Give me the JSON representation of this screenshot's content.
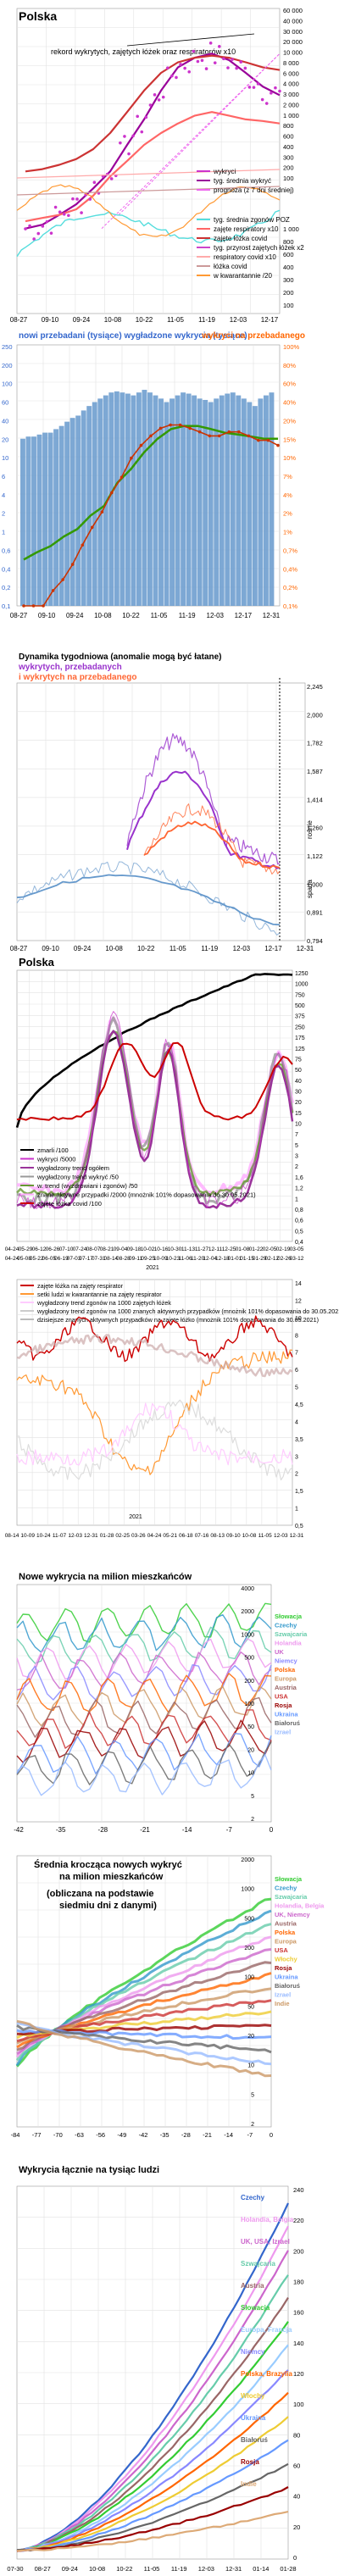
{
  "page": {
    "background": "#ffffff"
  },
  "chart_data": [
    {
      "type": "line",
      "title": "Polska",
      "annotation": "rekord wykrytych, zajętych łóżek oraz respiratorów x10",
      "x_ticks": [
        "08-27",
        "09-10",
        "09-24",
        "10-08",
        "10-22",
        "11-05",
        "11-19",
        "12-03",
        "12-17"
      ],
      "y_right_ticks": [
        "60 000",
        "40 000",
        "30 000",
        "20 000",
        "10 000",
        "8 000",
        "6 000",
        "4 000",
        "3 000",
        "2 000",
        "1 000",
        "800",
        "600",
        "400",
        "300",
        "200",
        "100"
      ],
      "y_lower_ticks": [
        "1 000",
        "800",
        "600",
        "400",
        "300",
        "200",
        "100"
      ],
      "yscale": "log",
      "legend_main": [
        {
          "name": "wykryci",
          "color": "#cc33cc"
        },
        {
          "name": "tyg. średnia wykryć",
          "color": "#990099"
        },
        {
          "name": "prognoza (z 7 dni średniej)",
          "color": "#ee66ee"
        }
      ],
      "legend_lower": [
        {
          "name": "tyg. średnia zgonów POZ",
          "color": "#55dddd"
        },
        {
          "name": "zajęte respiratory x10",
          "color": "#ff6666"
        },
        {
          "name": "zajęte łóżka covid",
          "color": "#cc3333"
        },
        {
          "name": "tyg. przyrost zajętych łóżek x2",
          "color": "#cc44cc"
        },
        {
          "name": "respiratory covid x10",
          "color": "#ffaaaa"
        },
        {
          "name": "łóżka covid",
          "color": "#cc9999"
        },
        {
          "name": "w kwarantannie /20",
          "color": "#ff9933"
        }
      ],
      "series": [
        {
          "name": "tyg. średnia wykryć",
          "values": [
            600,
            650,
            800,
            1000,
            1400,
            2000,
            3500,
            6000,
            11000,
            18000,
            22000,
            24000,
            21000,
            16000,
            12000,
            10000
          ]
        },
        {
          "name": "zajęte łóżka covid",
          "values": [
            2000,
            2100,
            2300,
            2600,
            3200,
            4500,
            7000,
            11000,
            16000,
            20000,
            22000,
            23000,
            22000,
            20000,
            18000,
            17000
          ]
        },
        {
          "name": "zajęte respiratory x10",
          "values": [
            700,
            750,
            800,
            900,
            1200,
            1800,
            2500,
            3500,
            4500,
            5500,
            6500,
            7000,
            6500,
            6000,
            5800,
            5500
          ]
        }
      ]
    },
    {
      "type": "bar",
      "title_left": "nowi przebadani (tysiące) wygładzone wykrycia (tysiące)",
      "title_right": "wykryci na przebadanego",
      "x_ticks": [
        "08-27",
        "09-10",
        "09-24",
        "10-08",
        "10-22",
        "11-05",
        "11-19",
        "12-03",
        "12-17",
        "12-31"
      ],
      "y_left_ticks": [
        "250",
        "200",
        "100",
        "60",
        "40",
        "20",
        "10",
        "6",
        "4",
        "2",
        "1",
        "0,6",
        "0,4",
        "0,2",
        "0,1"
      ],
      "y_right_ticks": [
        "100%",
        "80%",
        "60%",
        "40%",
        "20%",
        "15%",
        "10%",
        "7%",
        "4%",
        "2%",
        "1%",
        "0,7%",
        "0,4%",
        "0,2%",
        "0,1%"
      ],
      "bar_color": "#6699cc",
      "line_colors": [
        "#cc3300",
        "#339900"
      ],
      "values": [
        15,
        16,
        16,
        17,
        18,
        18,
        20,
        22,
        25,
        28,
        30,
        35,
        40,
        45,
        50,
        55,
        60,
        62,
        60,
        58,
        55,
        60,
        65,
        60,
        55,
        50,
        45,
        50,
        55,
        60,
        58,
        55,
        50,
        48,
        45,
        50,
        55,
        58,
        60,
        55,
        50,
        45,
        40,
        50,
        55,
        60
      ],
      "ratio_values": [
        0.1,
        0.1,
        0.1,
        0.15,
        0.2,
        0.3,
        0.5,
        0.8,
        1.2,
        2,
        3,
        5,
        7,
        9,
        11,
        12,
        12,
        11,
        10,
        9,
        9,
        10,
        10,
        9,
        8,
        8,
        7
      ],
      "detected_values": [
        0.4,
        0.5,
        0.6,
        0.8,
        1.0,
        1.5,
        2,
        4,
        6,
        10,
        15,
        20,
        22,
        22,
        20,
        18,
        17,
        16,
        15,
        15
      ]
    },
    {
      "type": "line",
      "title_a": "Dynamika tygodniowa (anomalie mogą być łatane)",
      "title_b": "wykrytych, przebadanych",
      "title_c": "i wykrytych na przebadanego",
      "x_ticks": [
        "08-27",
        "09-10",
        "09-24",
        "10-08",
        "10-22",
        "11-05",
        "11-19",
        "12-03",
        "12-17",
        "12-31"
      ],
      "y_right_ticks": [
        "2,245",
        "2,000",
        "1,782",
        "1,587",
        "1,414",
        "1,260",
        "1,122",
        "1,000",
        "0,891",
        "0,794"
      ],
      "side_labels": [
        "rośnie",
        "spada"
      ],
      "series_colors": [
        "#9933cc",
        "#ff6633",
        "#6699cc"
      ]
    },
    {
      "type": "line",
      "title": "Polska",
      "x_ticks_top": [
        "04-24",
        "05-29",
        "06-12",
        "06-26",
        "07-10",
        "07-24",
        "08-07",
        "08-21",
        "09-04",
        "09-18",
        "10-02",
        "10-16",
        "10-30",
        "11-13",
        "11-27",
        "12-11",
        "12-25",
        "01-08",
        "01-22",
        "02-05",
        "02-19",
        "03-05"
      ],
      "x_ticks_bottom": [
        "04-24",
        "05-08",
        "05-22",
        "06-05",
        "06-19",
        "07-03",
        "07-17",
        "07-31",
        "08-14",
        "08-28",
        "09-11",
        "09-25",
        "10-09",
        "10-23",
        "11-06",
        "11-20",
        "12-04",
        "12-18",
        "01-01",
        "01-15",
        "01-29",
        "02-12",
        "02-26",
        "03-12"
      ],
      "year_labels": [
        "2021"
      ],
      "y_right_ticks": [
        "1250",
        "1000",
        "750",
        "500",
        "375",
        "250",
        "175",
        "125",
        "75",
        "50",
        "40",
        "30",
        "20",
        "15",
        "10",
        "7",
        "5",
        "3",
        "2",
        "1,6",
        "1,2",
        "1",
        "0,8",
        "0,6",
        "0,5",
        "0,4"
      ],
      "legend": [
        {
          "name": "zmarli /100",
          "color": "#000000"
        },
        {
          "name": "wykryci /5000",
          "color": "#cc33cc"
        },
        {
          "name": "wygładzony trend ogółem",
          "color": "#993399"
        },
        {
          "name": "wygładzony trend wykryć /50",
          "color": "#999999"
        },
        {
          "name": "w. trend (wyzdrowiani i zgonów) /50",
          "color": "#669933"
        },
        {
          "name": "znane aktywne przypadki /2000 (mnożnik 101% dopasowania do 30.05.2021)",
          "color": "#ffaaff"
        },
        {
          "name": "zajęte łóżka covid /100",
          "color": "#cc0000"
        }
      ]
    },
    {
      "type": "line",
      "legend": [
        {
          "name": "zajęte łóżka na zajęty respirator",
          "color": "#cc0000"
        },
        {
          "name": "setki ludzi w kwarantannie na zajęty respirator",
          "color": "#ff9933"
        },
        {
          "name": "wygładzony trend zgonów na 1000 zajętych łóżek",
          "color": "#ffccff"
        },
        {
          "name": "wygładzony trend zgonów na 1000 znanych aktywnych przypadków (mnożnik 101% dopasowania do 30.05.2021)",
          "color": "#cccccc"
        },
        {
          "name": "dzisiejsze znanych aktywnych przypadków na zajęte łóżko (mnożnik 101% dopasowania do 30.05.2021)",
          "color": "#bbbbbb"
        }
      ],
      "x_ticks": [
        "08-14",
        "10-09",
        "10-24",
        "11-07",
        "12-03",
        "12-31",
        "01-28",
        "02-25",
        "03-26",
        "04-24",
        "05-21",
        "06-18",
        "07-16",
        "08-13",
        "09-10",
        "10-08",
        "11-05",
        "12-03",
        "12-31"
      ],
      "year_labels": [
        "2021"
      ],
      "y_right_ticks": [
        "14",
        "12",
        "10",
        "8",
        "7",
        "6",
        "5",
        "4,5",
        "4",
        "3,5",
        "3",
        "2",
        "1,5",
        "1",
        "0,5"
      ]
    },
    {
      "type": "line",
      "title": "Nowe wykrycia na milion mieszkańców",
      "x_ticks": [
        "-42",
        "-35",
        "-28",
        "-21",
        "-14",
        "-7",
        "0"
      ],
      "y_right_ticks": [
        "4000",
        "2000",
        "1000",
        "500",
        "200",
        "100",
        "50",
        "20",
        "10",
        "5",
        "2"
      ],
      "legend": [
        {
          "name": "Słowacja",
          "color": "#33cc33"
        },
        {
          "name": "Czechy",
          "color": "#3399cc"
        },
        {
          "name": "Szwajcaria",
          "color": "#66ccaa"
        },
        {
          "name": "Holandia",
          "color": "#ee99ee"
        },
        {
          "name": "UK",
          "color": "#cc66cc"
        },
        {
          "name": "Niemcy",
          "color": "#8888ff"
        },
        {
          "name": "Polska",
          "color": "#ff6600"
        },
        {
          "name": "Europa",
          "color": "#cc9966"
        },
        {
          "name": "Austria",
          "color": "#996666"
        },
        {
          "name": "USA",
          "color": "#cc3333"
        },
        {
          "name": "Rosja",
          "color": "#990000"
        },
        {
          "name": "Ukraina",
          "color": "#6699ff"
        },
        {
          "name": "Białoruś",
          "color": "#666666"
        },
        {
          "name": "Izrael",
          "color": "#99bbff"
        }
      ]
    },
    {
      "type": "line",
      "title_a": "Średnia krocząca nowych wykryć",
      "title_b": "na milion mieszkańców",
      "title_c": "(obliczana na podstawie",
      "title_d": "siedmiu dni z danymi)",
      "x_ticks": [
        "-84",
        "-77",
        "-70",
        "-63",
        "-56",
        "-49",
        "-42",
        "-35",
        "-28",
        "-21",
        "-14",
        "-7",
        "0"
      ],
      "y_right_ticks": [
        "2000",
        "1000",
        "500",
        "200",
        "100",
        "50",
        "20",
        "10",
        "5",
        "2"
      ],
      "legend": [
        {
          "name": "Słowacja",
          "color": "#33cc33"
        },
        {
          "name": "Czechy",
          "color": "#3399cc"
        },
        {
          "name": "Szwajcaria",
          "color": "#66ccaa"
        },
        {
          "name": "Holandia, Belgia",
          "color": "#ee99ee"
        },
        {
          "name": "UK, Niemcy",
          "color": "#cc66cc"
        },
        {
          "name": "Austria",
          "color": "#996666"
        },
        {
          "name": "Polska",
          "color": "#ff6600"
        },
        {
          "name": "Europa",
          "color": "#cc9966"
        },
        {
          "name": "USA",
          "color": "#cc3333"
        },
        {
          "name": "Włochy",
          "color": "#eecc33"
        },
        {
          "name": "Rosja",
          "color": "#990000"
        },
        {
          "name": "Ukraina",
          "color": "#6699ff"
        },
        {
          "name": "Białoruś",
          "color": "#666666"
        },
        {
          "name": "Izrael",
          "color": "#99bbff"
        },
        {
          "name": "Indie",
          "color": "#cc9966"
        }
      ]
    },
    {
      "type": "line",
      "title": "Wykrycia łącznie na tysiąc ludzi",
      "x_ticks": [
        "07-30",
        "08-27",
        "09-24",
        "10-08",
        "10-22",
        "11-05",
        "11-19",
        "12-03",
        "12-31",
        "01-14",
        "01-28"
      ],
      "y_right_ticks": [
        "240",
        "220",
        "200",
        "180",
        "160",
        "140",
        "120",
        "100",
        "80",
        "60",
        "40",
        "20",
        "0"
      ],
      "legend": [
        {
          "name": "Czechy",
          "color": "#3366cc"
        },
        {
          "name": "Holandia, Belgia",
          "color": "#ee99ee"
        },
        {
          "name": "UK, USA, Izrael",
          "color": "#cc66cc"
        },
        {
          "name": "Szwajcaria",
          "color": "#66ccaa"
        },
        {
          "name": "Austria",
          "color": "#996666"
        },
        {
          "name": "Słowacja",
          "color": "#33cc33"
        },
        {
          "name": "Europa, Francja",
          "color": "#99ccff"
        },
        {
          "name": "Niemcy",
          "color": "#8888ff"
        },
        {
          "name": "Polska, Brazylia",
          "color": "#ff6600"
        },
        {
          "name": "Włochy",
          "color": "#eecc33"
        },
        {
          "name": "Ukraina",
          "color": "#6699ff"
        },
        {
          "name": "Białoruś",
          "color": "#666666"
        },
        {
          "name": "Rosja",
          "color": "#990000"
        },
        {
          "name": "Indie",
          "color": "#ddaa77"
        }
      ]
    }
  ]
}
